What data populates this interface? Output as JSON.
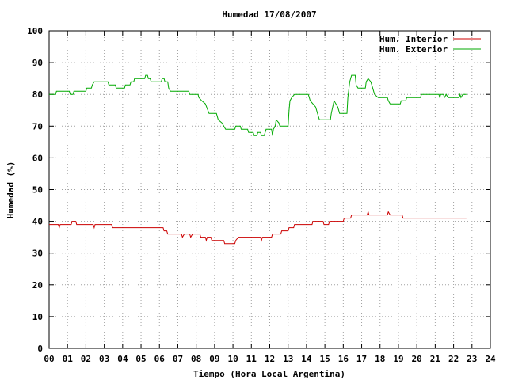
{
  "chart_data": {
    "type": "line",
    "title": "Humedad 17/08/2007",
    "xlabel": "Tiempo (Hora Local Argentina)",
    "ylabel": "Humedad (%)",
    "xlim": [
      0,
      24
    ],
    "ylim": [
      0,
      100
    ],
    "x_ticks": [
      "00",
      "01",
      "02",
      "03",
      "04",
      "05",
      "06",
      "07",
      "08",
      "09",
      "10",
      "11",
      "12",
      "13",
      "14",
      "15",
      "16",
      "17",
      "18",
      "19",
      "20",
      "21",
      "22",
      "23",
      "24"
    ],
    "y_ticks": [
      "0",
      "10",
      "20",
      "30",
      "40",
      "50",
      "60",
      "70",
      "80",
      "90",
      "100"
    ],
    "grid": true,
    "legend_position": "top-right",
    "colors": {
      "interior": "#cc0000",
      "exterior": "#00aa00",
      "axis": "#000000",
      "grid": "#a0a0a0"
    },
    "series": [
      {
        "name": "Hum. Interior",
        "color": "#cc0000",
        "points": [
          [
            0.0,
            39
          ],
          [
            0.5,
            39
          ],
          [
            0.55,
            38
          ],
          [
            0.6,
            39
          ],
          [
            1.2,
            39
          ],
          [
            1.25,
            40
          ],
          [
            1.45,
            40
          ],
          [
            1.5,
            39
          ],
          [
            2.4,
            39
          ],
          [
            2.45,
            38
          ],
          [
            2.5,
            39
          ],
          [
            3.4,
            39
          ],
          [
            3.45,
            38
          ],
          [
            6.2,
            38
          ],
          [
            6.25,
            37
          ],
          [
            6.4,
            37
          ],
          [
            6.45,
            36
          ],
          [
            7.2,
            36
          ],
          [
            7.25,
            35
          ],
          [
            7.35,
            36
          ],
          [
            7.65,
            36
          ],
          [
            7.7,
            35
          ],
          [
            7.8,
            36
          ],
          [
            8.2,
            36
          ],
          [
            8.25,
            35
          ],
          [
            8.5,
            35
          ],
          [
            8.55,
            34
          ],
          [
            8.6,
            35
          ],
          [
            8.8,
            35
          ],
          [
            8.85,
            34
          ],
          [
            9.5,
            34
          ],
          [
            9.55,
            33
          ],
          [
            10.1,
            33
          ],
          [
            10.15,
            34
          ],
          [
            10.3,
            35
          ],
          [
            11.5,
            35
          ],
          [
            11.55,
            34
          ],
          [
            11.6,
            35
          ],
          [
            12.1,
            35
          ],
          [
            12.15,
            36
          ],
          [
            12.6,
            36
          ],
          [
            12.65,
            37
          ],
          [
            13.0,
            37
          ],
          [
            13.05,
            38
          ],
          [
            13.3,
            38
          ],
          [
            13.35,
            39
          ],
          [
            14.3,
            39
          ],
          [
            14.35,
            40
          ],
          [
            14.9,
            40
          ],
          [
            14.95,
            39
          ],
          [
            15.2,
            39
          ],
          [
            15.25,
            40
          ],
          [
            16.0,
            40
          ],
          [
            16.05,
            41
          ],
          [
            16.4,
            41
          ],
          [
            16.45,
            42
          ],
          [
            17.3,
            42
          ],
          [
            17.35,
            43
          ],
          [
            17.4,
            42
          ],
          [
            18.4,
            42
          ],
          [
            18.45,
            43
          ],
          [
            18.55,
            42
          ],
          [
            19.2,
            42
          ],
          [
            19.25,
            41
          ],
          [
            22.7,
            41
          ]
        ]
      },
      {
        "name": "Hum. Exterior",
        "color": "#00aa00",
        "points": [
          [
            0.0,
            80
          ],
          [
            0.35,
            80
          ],
          [
            0.4,
            81
          ],
          [
            1.1,
            81
          ],
          [
            1.15,
            80
          ],
          [
            1.3,
            80
          ],
          [
            1.35,
            81
          ],
          [
            2.0,
            81
          ],
          [
            2.05,
            82
          ],
          [
            2.3,
            82
          ],
          [
            2.35,
            83
          ],
          [
            2.45,
            84
          ],
          [
            3.2,
            84
          ],
          [
            3.25,
            83
          ],
          [
            3.6,
            83
          ],
          [
            3.65,
            82
          ],
          [
            4.1,
            82
          ],
          [
            4.15,
            83
          ],
          [
            4.4,
            83
          ],
          [
            4.45,
            84
          ],
          [
            4.6,
            84
          ],
          [
            4.65,
            85
          ],
          [
            5.2,
            85
          ],
          [
            5.25,
            86
          ],
          [
            5.35,
            86
          ],
          [
            5.4,
            85
          ],
          [
            5.5,
            85
          ],
          [
            5.55,
            84
          ],
          [
            6.1,
            84
          ],
          [
            6.15,
            85
          ],
          [
            6.25,
            85
          ],
          [
            6.3,
            84
          ],
          [
            6.45,
            84
          ],
          [
            6.5,
            82
          ],
          [
            6.6,
            81
          ],
          [
            7.6,
            81
          ],
          [
            7.65,
            80
          ],
          [
            8.1,
            80
          ],
          [
            8.15,
            79
          ],
          [
            8.3,
            78
          ],
          [
            8.5,
            77
          ],
          [
            8.7,
            74
          ],
          [
            9.1,
            74
          ],
          [
            9.2,
            72
          ],
          [
            9.4,
            71
          ],
          [
            9.6,
            69
          ],
          [
            10.1,
            69
          ],
          [
            10.15,
            70
          ],
          [
            10.4,
            70
          ],
          [
            10.45,
            69
          ],
          [
            10.8,
            69
          ],
          [
            10.85,
            68
          ],
          [
            11.1,
            68
          ],
          [
            11.15,
            67
          ],
          [
            11.3,
            67
          ],
          [
            11.35,
            68
          ],
          [
            11.5,
            68
          ],
          [
            11.55,
            67
          ],
          [
            11.7,
            67
          ],
          [
            11.75,
            68
          ],
          [
            11.8,
            69
          ],
          [
            12.1,
            69
          ],
          [
            12.15,
            67
          ],
          [
            12.2,
            69
          ],
          [
            12.3,
            70
          ],
          [
            12.35,
            72
          ],
          [
            12.5,
            71
          ],
          [
            12.55,
            70
          ],
          [
            13.0,
            70
          ],
          [
            13.05,
            75
          ],
          [
            13.1,
            78
          ],
          [
            13.2,
            79
          ],
          [
            13.35,
            80
          ],
          [
            14.1,
            80
          ],
          [
            14.15,
            79
          ],
          [
            14.2,
            78
          ],
          [
            14.5,
            76
          ],
          [
            14.6,
            74
          ],
          [
            14.7,
            72
          ],
          [
            15.3,
            72
          ],
          [
            15.35,
            74
          ],
          [
            15.5,
            78
          ],
          [
            15.6,
            77
          ],
          [
            15.7,
            76
          ],
          [
            15.8,
            74
          ],
          [
            16.2,
            74
          ],
          [
            16.25,
            79
          ],
          [
            16.35,
            84
          ],
          [
            16.45,
            86
          ],
          [
            16.65,
            86
          ],
          [
            16.7,
            83
          ],
          [
            16.8,
            82
          ],
          [
            17.2,
            82
          ],
          [
            17.25,
            84
          ],
          [
            17.35,
            85
          ],
          [
            17.5,
            84
          ],
          [
            17.6,
            82
          ],
          [
            17.7,
            80
          ],
          [
            17.9,
            79
          ],
          [
            18.4,
            79
          ],
          [
            18.45,
            78
          ],
          [
            18.55,
            77
          ],
          [
            19.1,
            77
          ],
          [
            19.15,
            78
          ],
          [
            19.4,
            78
          ],
          [
            19.45,
            79
          ],
          [
            20.2,
            79
          ],
          [
            20.25,
            80
          ],
          [
            21.2,
            80
          ],
          [
            21.25,
            79
          ],
          [
            21.3,
            80
          ],
          [
            21.45,
            80
          ],
          [
            21.5,
            79
          ],
          [
            21.6,
            80
          ],
          [
            21.7,
            79
          ],
          [
            22.3,
            79
          ],
          [
            22.35,
            80
          ],
          [
            22.4,
            79
          ],
          [
            22.5,
            80
          ],
          [
            22.7,
            80
          ]
        ]
      }
    ]
  }
}
